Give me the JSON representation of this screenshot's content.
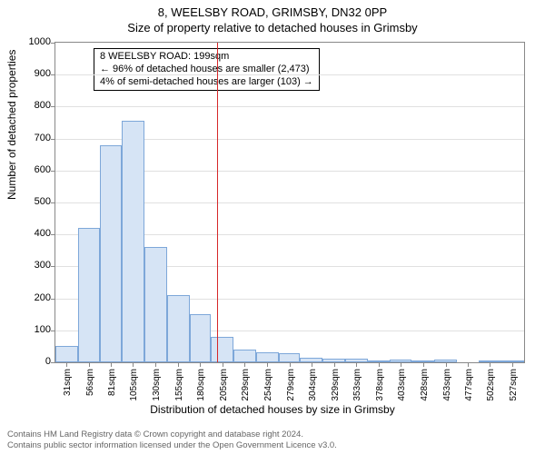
{
  "header": {
    "address": "8, WEELSBY ROAD, GRIMSBY, DN32 0PP",
    "subtitle": "Size of property relative to detached houses in Grimsby"
  },
  "chart": {
    "type": "histogram",
    "ylabel": "Number of detached properties",
    "xlabel": "Distribution of detached houses by size in Grimsby",
    "ylim": [
      0,
      1000
    ],
    "ytick_step": 100,
    "background_color": "#ffffff",
    "grid_color": "#e0e0e0",
    "axis_color": "#888888",
    "bar_fill": "#d6e4f5",
    "bar_stroke": "#7da7d9",
    "marker_color": "#d62728",
    "marker_value": 199,
    "xtick_labels": [
      "31sqm",
      "56sqm",
      "81sqm",
      "105sqm",
      "130sqm",
      "155sqm",
      "180sqm",
      "205sqm",
      "229sqm",
      "254sqm",
      "279sqm",
      "304sqm",
      "329sqm",
      "353sqm",
      "378sqm",
      "403sqm",
      "428sqm",
      "453sqm",
      "477sqm",
      "502sqm",
      "527sqm"
    ],
    "xtick_values": [
      31,
      56,
      81,
      105,
      130,
      155,
      180,
      205,
      229,
      254,
      279,
      304,
      329,
      353,
      378,
      403,
      428,
      453,
      477,
      502,
      527
    ],
    "x_range": [
      19,
      540
    ],
    "bars": [
      {
        "x0": 19,
        "x1": 44,
        "y": 50
      },
      {
        "x0": 44,
        "x1": 68,
        "y": 420
      },
      {
        "x0": 68,
        "x1": 93,
        "y": 680
      },
      {
        "x0": 93,
        "x1": 118,
        "y": 755
      },
      {
        "x0": 118,
        "x1": 143,
        "y": 360
      },
      {
        "x0": 143,
        "x1": 168,
        "y": 210
      },
      {
        "x0": 168,
        "x1": 192,
        "y": 150
      },
      {
        "x0": 192,
        "x1": 217,
        "y": 80
      },
      {
        "x0": 217,
        "x1": 242,
        "y": 40
      },
      {
        "x0": 242,
        "x1": 267,
        "y": 30
      },
      {
        "x0": 267,
        "x1": 291,
        "y": 28
      },
      {
        "x0": 291,
        "x1": 316,
        "y": 15
      },
      {
        "x0": 316,
        "x1": 341,
        "y": 12
      },
      {
        "x0": 341,
        "x1": 366,
        "y": 10
      },
      {
        "x0": 366,
        "x1": 391,
        "y": 4
      },
      {
        "x0": 391,
        "x1": 415,
        "y": 8
      },
      {
        "x0": 415,
        "x1": 440,
        "y": 3
      },
      {
        "x0": 440,
        "x1": 465,
        "y": 8
      },
      {
        "x0": 465,
        "x1": 490,
        "y": 0
      },
      {
        "x0": 490,
        "x1": 515,
        "y": 2
      },
      {
        "x0": 515,
        "x1": 540,
        "y": 4
      }
    ],
    "annotation": {
      "line1": "8 WEELSBY ROAD: 199sqm",
      "line2": "← 96% of detached houses are smaller (2,473)",
      "line3": "4% of semi-detached houses are larger (103) →"
    }
  },
  "footer": {
    "line1": "Contains HM Land Registry data © Crown copyright and database right 2024.",
    "line2": "Contains public sector information licensed under the Open Government Licence v3.0."
  }
}
